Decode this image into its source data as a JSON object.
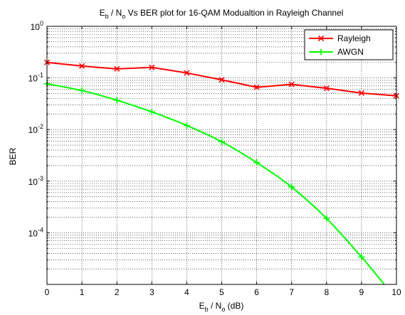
{
  "chart_data": {
    "type": "line",
    "title": {
      "E": "E",
      "b": "b",
      "mid": " / N",
      "o": "o",
      "rest": " Vs BER plot for 16-QAM Modualtion in Rayleigh Channel"
    },
    "xlabel": {
      "E": "E",
      "b": "b",
      "mid": " / N",
      "o": "o",
      "rest": " (dB)"
    },
    "ylabel": "BER",
    "xlim": [
      0,
      10
    ],
    "ylim": [
      1e-05,
      1
    ],
    "yscale": "log",
    "grid": true,
    "legend_position": "top-right",
    "x_ticks": [
      "0",
      "1",
      "2",
      "3",
      "4",
      "5",
      "6",
      "7",
      "8",
      "9",
      "10"
    ],
    "y_ticks": [
      {
        "value": 1,
        "base": "10",
        "exp": "0"
      },
      {
        "value": 0.1,
        "base": "10",
        "exp": "-1"
      },
      {
        "value": 0.01,
        "base": "10",
        "exp": "-2"
      },
      {
        "value": 0.001,
        "base": "10",
        "exp": "-3"
      },
      {
        "value": 0.0001,
        "base": "10",
        "exp": "-4"
      }
    ],
    "series": [
      {
        "name": "Rayleigh",
        "color": "#ff0000",
        "marker": "x",
        "x": [
          0,
          1,
          2,
          3,
          4,
          5,
          6,
          7,
          8,
          9,
          10
        ],
        "values": [
          0.2,
          0.17,
          0.15,
          0.16,
          0.125,
          0.092,
          0.066,
          0.075,
          0.063,
          0.051,
          0.045
        ]
      },
      {
        "name": "AWGN",
        "color": "#00ff00",
        "marker": "+",
        "x": [
          0,
          1,
          2,
          3,
          4,
          5,
          6,
          7,
          8,
          9,
          9.65
        ],
        "values": [
          0.077,
          0.057,
          0.037,
          0.022,
          0.012,
          0.0058,
          0.0023,
          0.00077,
          0.00019,
          3.4e-05,
          1e-05
        ]
      }
    ]
  }
}
